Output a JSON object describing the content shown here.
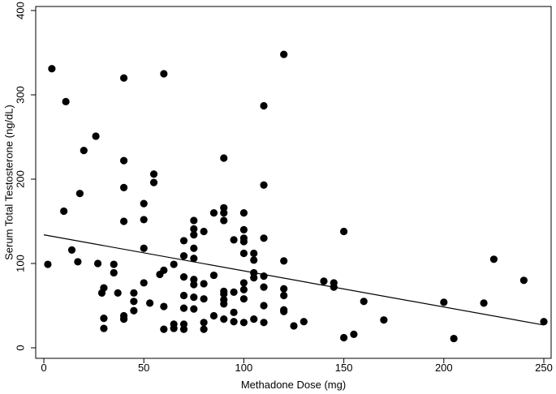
{
  "chart_data": {
    "type": "scatter",
    "xlabel": "Methadone Dose (mg)",
    "ylabel": "Serum Total Testosterone (ng/dL)",
    "xlim": [
      0,
      250
    ],
    "ylim": [
      0,
      400
    ],
    "xticks": [
      0,
      50,
      100,
      150,
      200,
      250
    ],
    "yticks": [
      0,
      100,
      200,
      300,
      400
    ],
    "grid": false,
    "legend": "none",
    "marker_color": "#000000",
    "trendline": {
      "type": "linear fit",
      "x": [
        0,
        250
      ],
      "y": [
        134,
        27
      ],
      "color": "#000000"
    },
    "series": [
      {
        "points": [
          [
            2,
            99
          ],
          [
            4,
            331
          ],
          [
            11,
            292
          ],
          [
            10,
            162
          ],
          [
            14,
            116
          ],
          [
            17,
            102
          ],
          [
            18,
            183
          ],
          [
            20,
            234
          ],
          [
            26,
            251
          ],
          [
            27,
            100
          ],
          [
            29,
            65
          ],
          [
            30,
            71
          ],
          [
            30,
            35
          ],
          [
            30,
            23
          ],
          [
            35,
            89
          ],
          [
            35,
            99
          ],
          [
            37,
            65
          ],
          [
            40,
            320
          ],
          [
            40,
            222
          ],
          [
            40,
            190
          ],
          [
            40,
            150
          ],
          [
            40,
            38
          ],
          [
            40,
            34
          ],
          [
            45,
            65
          ],
          [
            45,
            55
          ],
          [
            45,
            44
          ],
          [
            50,
            171
          ],
          [
            50,
            152
          ],
          [
            50,
            118
          ],
          [
            50,
            77
          ],
          [
            53,
            53
          ],
          [
            55,
            206
          ],
          [
            55,
            196
          ],
          [
            58,
            87
          ],
          [
            60,
            325
          ],
          [
            60,
            92
          ],
          [
            60,
            49
          ],
          [
            60,
            22
          ],
          [
            65,
            99
          ],
          [
            65,
            28
          ],
          [
            65,
            23
          ],
          [
            70,
            127
          ],
          [
            70,
            109
          ],
          [
            70,
            84
          ],
          [
            70,
            62
          ],
          [
            70,
            47
          ],
          [
            70,
            28
          ],
          [
            70,
            22
          ],
          [
            75,
            151
          ],
          [
            75,
            141
          ],
          [
            75,
            134
          ],
          [
            75,
            118
          ],
          [
            75,
            106
          ],
          [
            75,
            81
          ],
          [
            75,
            75
          ],
          [
            75,
            60
          ],
          [
            75,
            46
          ],
          [
            80,
            138
          ],
          [
            80,
            76
          ],
          [
            80,
            58
          ],
          [
            80,
            30
          ],
          [
            80,
            22
          ],
          [
            85,
            160
          ],
          [
            85,
            86
          ],
          [
            85,
            38
          ],
          [
            90,
            225
          ],
          [
            90,
            166
          ],
          [
            90,
            160
          ],
          [
            90,
            151
          ],
          [
            90,
            67
          ],
          [
            90,
            64
          ],
          [
            90,
            57
          ],
          [
            90,
            52
          ],
          [
            90,
            34
          ],
          [
            95,
            128
          ],
          [
            95,
            66
          ],
          [
            95,
            42
          ],
          [
            95,
            31
          ],
          [
            100,
            160
          ],
          [
            100,
            140
          ],
          [
            100,
            130
          ],
          [
            100,
            126
          ],
          [
            100,
            112
          ],
          [
            100,
            77
          ],
          [
            100,
            69
          ],
          [
            100,
            58
          ],
          [
            100,
            30
          ],
          [
            105,
            112
          ],
          [
            105,
            104
          ],
          [
            105,
            89
          ],
          [
            105,
            83
          ],
          [
            105,
            34
          ],
          [
            110,
            287
          ],
          [
            110,
            193
          ],
          [
            110,
            130
          ],
          [
            110,
            85
          ],
          [
            110,
            72
          ],
          [
            110,
            50
          ],
          [
            110,
            30
          ],
          [
            120,
            348
          ],
          [
            120,
            103
          ],
          [
            120,
            70
          ],
          [
            120,
            62
          ],
          [
            120,
            45
          ],
          [
            120,
            43
          ],
          [
            125,
            26
          ],
          [
            130,
            31
          ],
          [
            140,
            79
          ],
          [
            145,
            77
          ],
          [
            145,
            72
          ],
          [
            150,
            138
          ],
          [
            150,
            12
          ],
          [
            155,
            16
          ],
          [
            160,
            55
          ],
          [
            170,
            33
          ],
          [
            200,
            54
          ],
          [
            205,
            11
          ],
          [
            220,
            53
          ],
          [
            225,
            105
          ],
          [
            240,
            80
          ],
          [
            250,
            31
          ]
        ]
      }
    ]
  }
}
